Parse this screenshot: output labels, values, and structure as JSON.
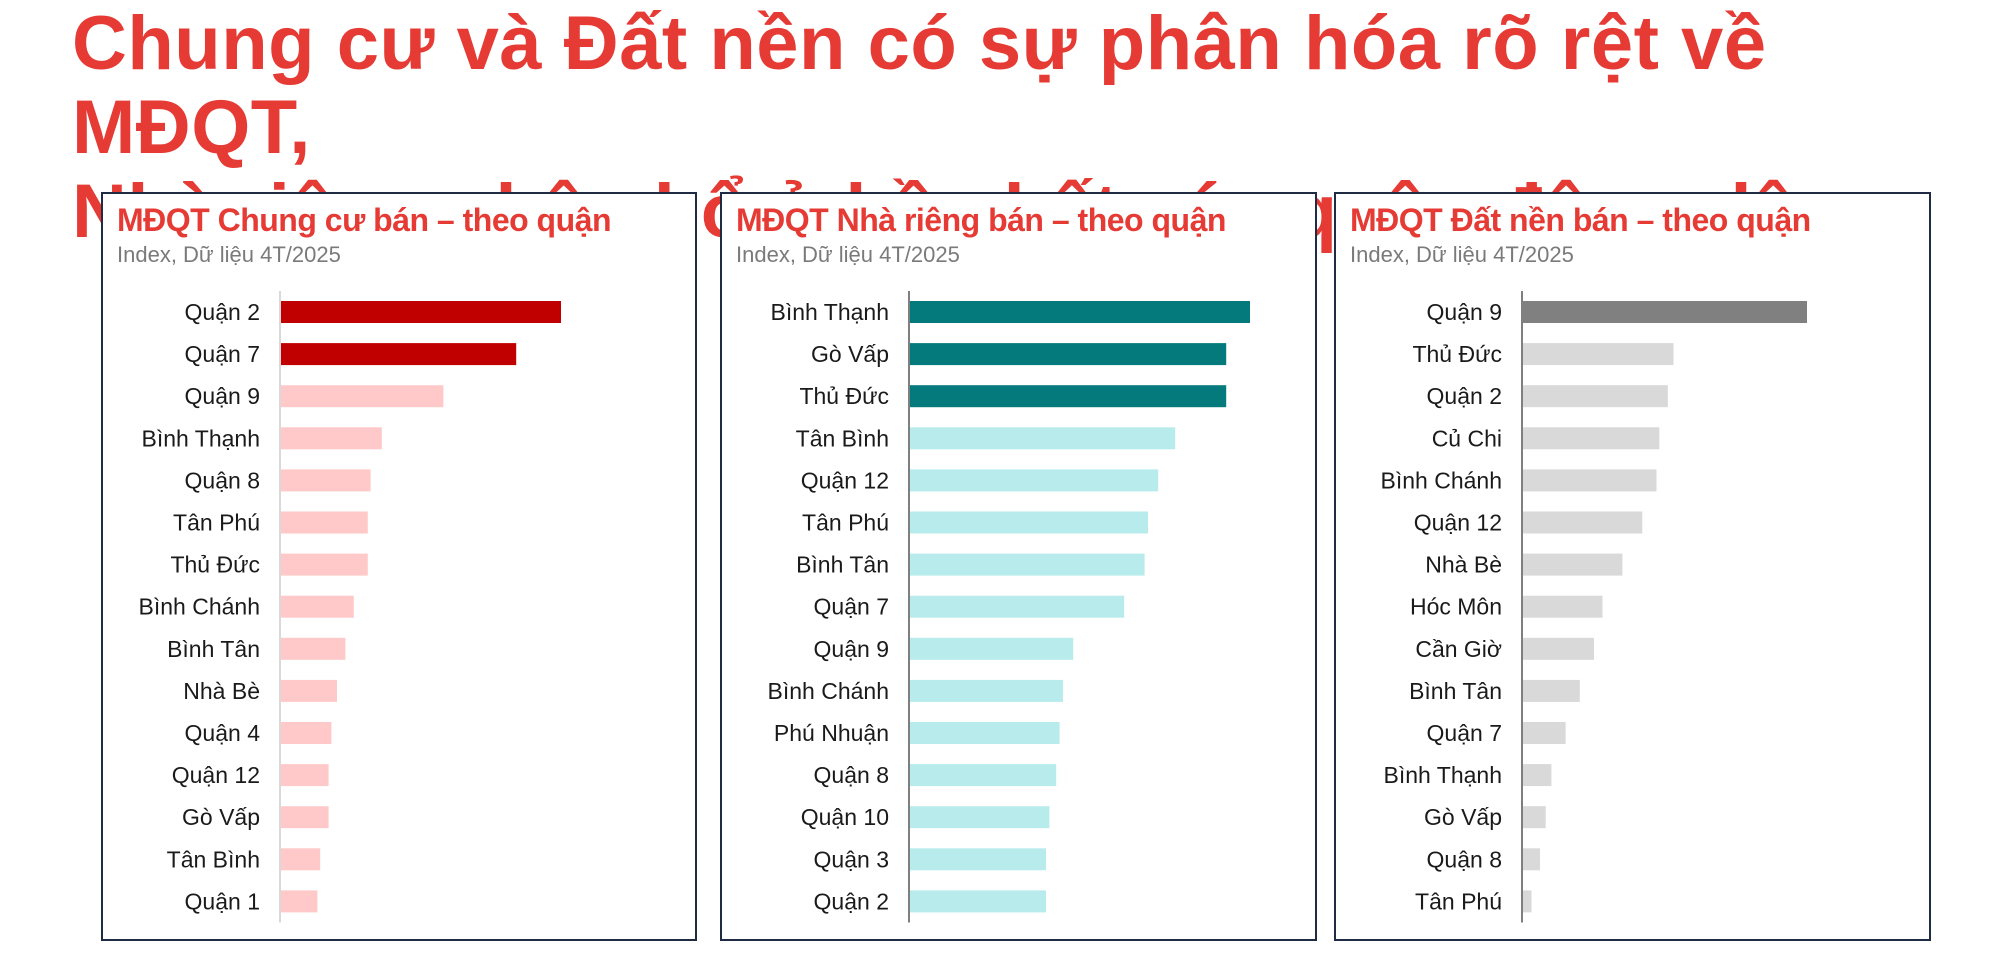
{
  "headline": {
    "line1": "Chung cư và Đất nền có sự phân hóa rõ rệt về MĐQT,",
    "line2": "Nhà riêng phân bổ ở hầu hết các quận đông dân"
  },
  "chart_data": [
    {
      "type": "bar",
      "orientation": "horizontal",
      "title": "MĐQT Chung cư bán – theo quận",
      "subtitle": "Index, Dữ liệu 4T/2025",
      "categories": [
        "Quận 2",
        "Quận 7",
        "Quận 9",
        "Bình Thạnh",
        "Quận 8",
        "Tân Phú",
        "Thủ Đức",
        "Bình Chánh",
        "Bình Tân",
        "Nhà Bè",
        "Quận 4",
        "Quận 12",
        "Gò Vấp",
        "Tân Bình",
        "Quận 1"
      ],
      "values": [
        100,
        84,
        58,
        36,
        32,
        31,
        31,
        26,
        23,
        20,
        18,
        17,
        17,
        14,
        13
      ],
      "highlight_count": 2,
      "colors": {
        "highlight": "#c00000",
        "other": "#ffc9c9",
        "axis": "#d9d9d9"
      },
      "xlim": [
        0,
        100
      ],
      "grid": false,
      "axis_ticks": false
    },
    {
      "type": "bar",
      "orientation": "horizontal",
      "title": "MĐQT Nhà riêng bán – theo quận",
      "subtitle": "Index, Dữ liệu 4T/2025",
      "categories": [
        "Bình Thạnh",
        "Gò Vấp",
        "Thủ Đức",
        "Tân Bình",
        "Quận 12",
        "Tân Phú",
        "Bình Tân",
        "Quận 7",
        "Quận 9",
        "Bình Chánh",
        "Phú Nhuận",
        "Quận 8",
        "Quận 10",
        "Quận 3",
        "Quận 2"
      ],
      "values": [
        100,
        93,
        93,
        78,
        73,
        70,
        69,
        63,
        48,
        45,
        44,
        43,
        41,
        40,
        40
      ],
      "highlight_count": 3,
      "colors": {
        "highlight": "#057a7c",
        "other": "#b8ecec",
        "axis": "#7f7f7f"
      },
      "xlim": [
        0,
        100
      ],
      "grid": false,
      "axis_ticks": false
    },
    {
      "type": "bar",
      "orientation": "horizontal",
      "title": "MĐQT Đất nền bán – theo quận",
      "subtitle": "Index, Dữ liệu 4T/2025",
      "categories": [
        "Quận 9",
        "Thủ Đức",
        "Quận 2",
        "Củ Chi",
        "Bình Chánh",
        "Quận 12",
        "Nhà Bè",
        "Hóc Môn",
        "Cần Giờ",
        "Bình Tân",
        "Quận 7",
        "Bình Thạnh",
        "Gò Vấp",
        "Quận 8",
        "Tân Phú"
      ],
      "values": [
        100,
        53,
        51,
        48,
        47,
        42,
        35,
        28,
        25,
        20,
        15,
        10,
        8,
        6,
        3
      ],
      "highlight_count": 1,
      "colors": {
        "highlight": "#808080",
        "other": "#d9d9d9",
        "axis": "#7f7f7f"
      },
      "xlim": [
        0,
        100
      ],
      "grid": false,
      "axis_ticks": false
    }
  ]
}
